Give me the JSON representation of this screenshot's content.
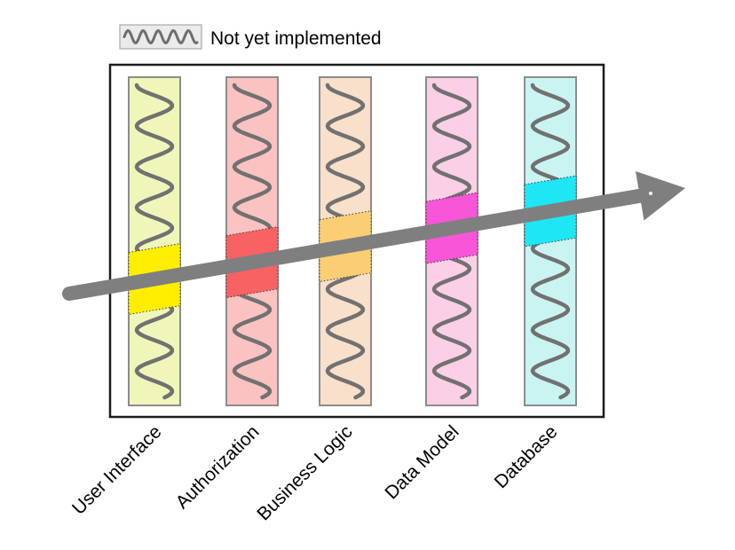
{
  "legend": {
    "label": "Not yet implemented",
    "swatch_fill": "#ebebeb",
    "swatch_border": "#999999",
    "squiggle_color": "#6e6e6e"
  },
  "arrow": {
    "name": "tracer-bullet-arrow",
    "color": "#7f7f7f",
    "direction": "diagonal-up-right"
  },
  "diagram": {
    "pattern_meaning": "Not yet implemented",
    "box_border_color": "#1c1c1c",
    "bar_border_color": "#8c8c8c",
    "wave_color": "#717171",
    "highlight_border_color": "#3a3a3a",
    "layers": [
      {
        "label": "User Interface",
        "bar_color": "#f0f6ba",
        "highlight_color": "#ffee00"
      },
      {
        "label": "Authorization",
        "bar_color": "#fac2c0",
        "highlight_color": "#f96262"
      },
      {
        "label": "Business Logic",
        "bar_color": "#f9e0ca",
        "highlight_color": "#fbce74"
      },
      {
        "label": "Data Model",
        "bar_color": "#fbcfe5",
        "highlight_color": "#f955d8"
      },
      {
        "label": "Database",
        "bar_color": "#c9f4f2",
        "highlight_color": "#1fe6f5"
      }
    ]
  }
}
